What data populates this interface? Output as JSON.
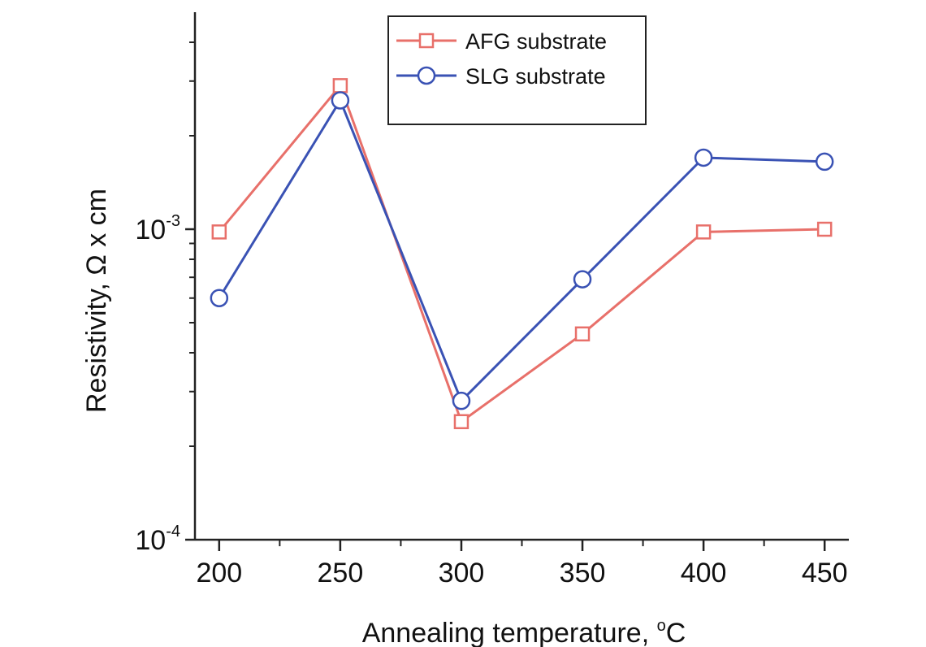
{
  "chart_data": {
    "type": "line",
    "xlabel": "Annealing temperature, ",
    "xlabel_unit": "C",
    "xlabel_degree": "o",
    "ylabel": "Resistivity, Ω x cm",
    "y_scale": "log",
    "xlim": [
      190,
      460
    ],
    "ylim": [
      0.0001,
      0.005
    ],
    "x_ticks": [
      200,
      250,
      300,
      350,
      400,
      450
    ],
    "x_tick_labels": [
      "200",
      "250",
      "300",
      "350",
      "400",
      "450"
    ],
    "y_ticks": [
      {
        "value": 0.001,
        "base": "10",
        "exponent": "-3"
      },
      {
        "value": 0.0001,
        "base": "10",
        "exponent": "-4"
      }
    ],
    "legend_position": "top-center",
    "grid": false,
    "x": [
      200,
      250,
      300,
      350,
      400,
      450
    ],
    "series": [
      {
        "name": "AFG substrate",
        "marker": "square",
        "color": "#e8706a",
        "values": [
          0.00098,
          0.0029,
          0.00024,
          0.00046,
          0.00098,
          0.001
        ]
      },
      {
        "name": "SLG substrate",
        "marker": "circle",
        "color": "#3a52b4",
        "values": [
          0.0006,
          0.0026,
          0.00028,
          0.00069,
          0.0017,
          0.00165
        ]
      }
    ]
  }
}
